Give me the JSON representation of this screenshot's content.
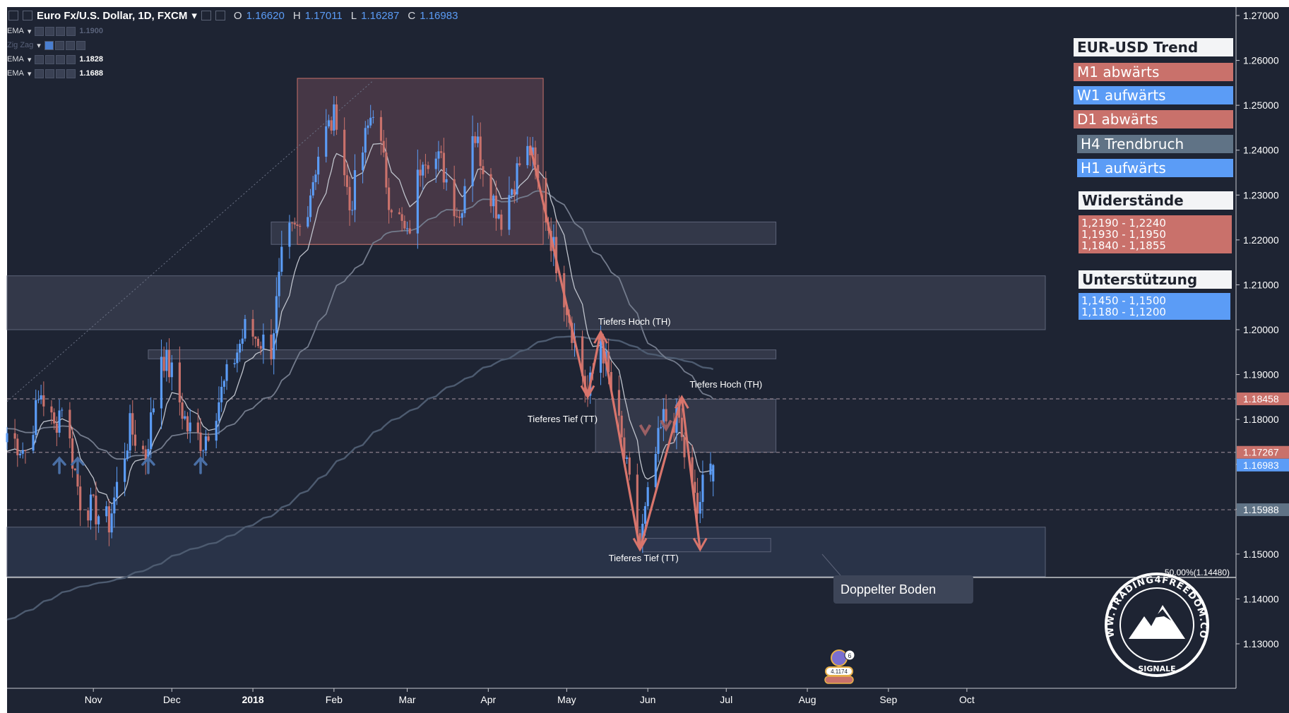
{
  "header": {
    "symbol": "Euro Fx/U.S. Dollar, 1D, FXCM",
    "open_label": "O",
    "open": "1.16620",
    "high_label": "H",
    "high": "1.17011",
    "low_label": "L",
    "low": "1.16287",
    "close_label": "C",
    "close": "1.16983"
  },
  "indicators": [
    {
      "name": "EMA",
      "value": "1.1900",
      "dim": true
    },
    {
      "name": "Zig Zag",
      "value": "",
      "dim": true
    },
    {
      "name": "EMA",
      "value": "1.1828",
      "dim": false
    },
    {
      "name": "EMA",
      "value": "1.1688",
      "dim": false
    }
  ],
  "legend": {
    "trend_title": "EUR-USD Trend",
    "trend_items": [
      {
        "label": "M1 abwärts",
        "color": "#c9716b"
      },
      {
        "label": "W1 aufwärts",
        "color": "#5b9cf6"
      },
      {
        "label": "D1 abwärts",
        "color": "#c9716b"
      },
      {
        "label": "H4 Trendbruch",
        "color": "#607386"
      },
      {
        "label": "H1 aufwärts",
        "color": "#5b9cf6"
      }
    ],
    "resistance_title": "Widerstände",
    "resistance_levels": [
      "1,2190 - 1,2240",
      "1,1930 - 1,1950",
      "1,1840 - 1,1855"
    ],
    "support_title": "Unterstützung",
    "support_levels": [
      "1,1450 - 1,1500",
      "1,1180 - 1,1200"
    ]
  },
  "annotations": {
    "lh1": "Tiefers Hoch (TH)",
    "lh2": "Tiefers Hoch (TH)",
    "ll1": "Tieferes Tief (TT)",
    "ll2": "Tieferes Tief (TT)",
    "fib": "50.00%(1.14480)",
    "double_bottom": "Doppelter Boden",
    "events_count": "6",
    "events_value": "4.1174"
  },
  "price_axis": {
    "ticks": [
      "1.27000",
      "1.26000",
      "1.25000",
      "1.24000",
      "1.23000",
      "1.22000",
      "1.21000",
      "1.20000",
      "1.19000",
      "1.18000",
      "1.17000",
      "1.16000",
      "1.15000",
      "1.14000",
      "1.13000"
    ],
    "markers": [
      {
        "label": "1.18458",
        "color": "#c9716b"
      },
      {
        "label": "1.17267",
        "color": "#c9716b"
      },
      {
        "label": "1.16983",
        "color": "#5b9cf6"
      },
      {
        "label": "1.15988",
        "color": "#607386"
      }
    ]
  },
  "time_axis": {
    "ticks": [
      "Nov",
      "Dec",
      "2018",
      "Feb",
      "Mar",
      "Apr",
      "May",
      "Jun",
      "Jul",
      "Aug",
      "Sep",
      "Oct"
    ]
  },
  "logo": {
    "text": "WWW.TRADING4FREEDOM.COM",
    "sub": "SIGNALE"
  },
  "colors": {
    "background": "#1e2433",
    "up_candle": "#5b9cf6",
    "down_candle": "#c9716b",
    "zone": "#3b3f52"
  },
  "chart_data": {
    "type": "candlestick",
    "title": "Euro Fx/U.S. Dollar, 1D, FXCM",
    "x_range": [
      "2017-09-29",
      "2018-10-31"
    ],
    "y_range": [
      1.12,
      1.275
    ],
    "anchors": [
      [
        "2017-09-29",
        1.177
      ],
      [
        "2017-10-06",
        1.173
      ],
      [
        "2017-10-12",
        1.186
      ],
      [
        "2017-10-17",
        1.178
      ],
      [
        "2017-10-20",
        1.184
      ],
      [
        "2017-10-27",
        1.162
      ],
      [
        "2017-11-07",
        1.157
      ],
      [
        "2017-11-15",
        1.178
      ],
      [
        "2017-11-21",
        1.172
      ],
      [
        "2017-11-27",
        1.195
      ],
      [
        "2017-12-01",
        1.19
      ],
      [
        "2017-12-07",
        1.178
      ],
      [
        "2017-12-13",
        1.175
      ],
      [
        "2017-12-20",
        1.186
      ],
      [
        "2017-12-29",
        1.2
      ],
      [
        "2018-01-08",
        1.196
      ],
      [
        "2018-01-13",
        1.22
      ],
      [
        "2018-01-20",
        1.223
      ],
      [
        "2018-01-27",
        1.242
      ],
      [
        "2018-02-02",
        1.248
      ],
      [
        "2018-02-07",
        1.227
      ],
      [
        "2018-02-16",
        1.25
      ],
      [
        "2018-02-22",
        1.23
      ],
      [
        "2018-03-01",
        1.22
      ],
      [
        "2018-03-07",
        1.24
      ],
      [
        "2018-03-14",
        1.237
      ],
      [
        "2018-03-21",
        1.225
      ],
      [
        "2018-03-26",
        1.245
      ],
      [
        "2018-04-03",
        1.229
      ],
      [
        "2018-04-06",
        1.225
      ],
      [
        "2018-04-13",
        1.237
      ],
      [
        "2018-04-17",
        1.24
      ],
      [
        "2018-04-22",
        1.228
      ],
      [
        "2018-04-30",
        1.208
      ],
      [
        "2018-05-09",
        1.185
      ],
      [
        "2018-05-14",
        1.198
      ],
      [
        "2018-05-21",
        1.178
      ],
      [
        "2018-05-29",
        1.152
      ],
      [
        "2018-06-04",
        1.172
      ],
      [
        "2018-06-07",
        1.18
      ],
      [
        "2018-06-13",
        1.18
      ],
      [
        "2018-06-14",
        1.175
      ],
      [
        "2018-06-20",
        1.159
      ],
      [
        "2018-06-22",
        1.165
      ],
      [
        "2018-06-26",
        1.1698
      ]
    ],
    "ema_fast_last": 1.1688,
    "ema_mid_last": 1.1828,
    "ema_slow_last": 1.19,
    "zones": [
      {
        "from": "2017-09-29",
        "to": "2018-10-31",
        "top": 1.212,
        "bottom": 1.2
      },
      {
        "from": "2017-09-29",
        "to": "2018-10-31",
        "top": 1.156,
        "bottom": 1.145
      },
      {
        "from": "2017-11-22",
        "to": "2018-07-20",
        "top": 1.1955,
        "bottom": 1.1935
      },
      {
        "from": "2018-01-08",
        "to": "2018-07-20",
        "top": 1.224,
        "bottom": 1.219
      },
      {
        "from": "2018-01-18",
        "to": "2018-04-22",
        "top": 1.256,
        "bottom": 1.219
      },
      {
        "from": "2018-05-12",
        "to": "2018-07-20",
        "top": 1.1845,
        "bottom": 1.1727
      },
      {
        "from": "2018-05-30",
        "to": "2018-07-18",
        "top": 1.1535,
        "bottom": 1.1505
      }
    ],
    "zigzag": [
      [
        "2018-04-17",
        1.241
      ],
      [
        "2018-05-09",
        1.185
      ],
      [
        "2018-05-14",
        1.1995
      ],
      [
        "2018-05-29",
        1.151
      ],
      [
        "2018-06-14",
        1.185
      ],
      [
        "2018-06-21",
        1.151
      ]
    ]
  }
}
